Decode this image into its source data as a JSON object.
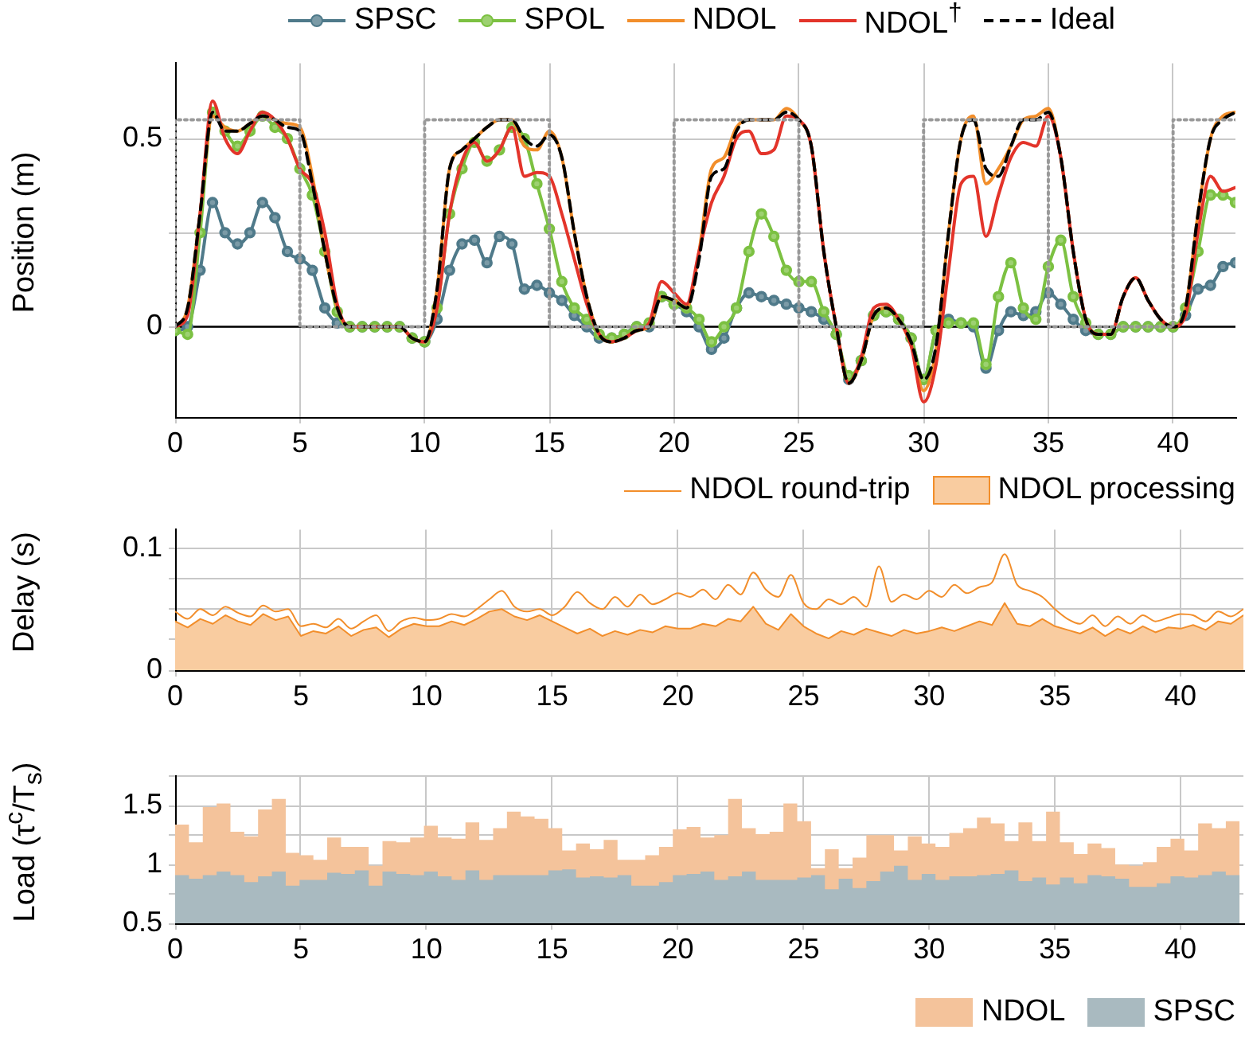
{
  "chart_data": [
    {
      "type": "line",
      "ylabel": "Position (m)",
      "xlim": [
        0,
        42.5
      ],
      "xticks": [
        0,
        5,
        10,
        15,
        20,
        25,
        30,
        35,
        40
      ],
      "ylim": [
        -0.24,
        0.7
      ],
      "yticks": [
        0,
        {
          "value": 0.25,
          "label": null
        },
        0.5
      ],
      "grid": true,
      "legend": "top",
      "x": [
        0,
        0.5,
        1,
        1.5,
        2,
        2.5,
        3,
        3.5,
        4,
        4.5,
        5,
        5.5,
        6,
        6.5,
        7,
        7.5,
        8,
        8.5,
        9,
        9.5,
        10,
        10.5,
        11,
        11.5,
        12,
        12.5,
        13,
        13.5,
        14,
        14.5,
        15,
        15.5,
        16,
        16.5,
        17,
        17.5,
        18,
        18.5,
        19,
        19.5,
        20,
        20.5,
        21,
        21.5,
        22,
        22.5,
        23,
        23.5,
        24,
        24.5,
        25,
        25.5,
        26,
        26.5,
        27,
        27.5,
        28,
        28.5,
        29,
        29.5,
        30,
        30.5,
        31,
        31.5,
        32,
        32.5,
        33,
        33.5,
        34,
        34.5,
        35,
        35.5,
        36,
        36.5,
        37,
        37.5,
        38,
        38.5,
        39,
        39.5,
        40,
        40.5,
        41,
        41.5,
        42,
        42.5
      ],
      "ref_lines": [
        {
          "axis": "y",
          "value": 0,
          "color": "#000000"
        }
      ],
      "series": [
        {
          "name": "SPSC",
          "color": "#4f7a8a",
          "marker": "circle",
          "values": [
            -0.01,
            0,
            0.15,
            0.33,
            0.25,
            0.22,
            0.25,
            0.33,
            0.29,
            0.2,
            0.18,
            0.15,
            0.05,
            0.01,
            0,
            0,
            0,
            0,
            0,
            -0.03,
            -0.04,
            0.02,
            0.15,
            0.22,
            0.23,
            0.17,
            0.24,
            0.22,
            0.1,
            0.11,
            0.09,
            0.07,
            0.03,
            0,
            -0.03,
            -0.03,
            -0.02,
            0,
            0,
            0.08,
            0.06,
            0.04,
            0,
            -0.06,
            -0.03,
            0.05,
            0.09,
            0.08,
            0.07,
            0.06,
            0.05,
            0.04,
            0.02,
            -0.02,
            -0.14,
            -0.09,
            0.03,
            0.04,
            0.02,
            -0.03,
            -0.14,
            -0.01,
            0.02,
            0.01,
            0,
            -0.11,
            -0.01,
            0.04,
            0.03,
            0.04,
            0.09,
            0.06,
            0.02,
            -0.01,
            -0.02,
            -0.02,
            0,
            0,
            0,
            0,
            0,
            0.03,
            0.1,
            0.11,
            0.16,
            0.17
          ]
        },
        {
          "name": "SPOL",
          "color": "#7cc142",
          "marker": "circle",
          "values": [
            -0.01,
            -0.02,
            0.25,
            0.57,
            0.52,
            0.48,
            0.52,
            0.56,
            0.53,
            0.5,
            0.42,
            0.35,
            0.2,
            0.04,
            0,
            0,
            0,
            0,
            0,
            -0.03,
            -0.04,
            0.05,
            0.3,
            0.42,
            0.49,
            0.44,
            0.47,
            0.53,
            0.5,
            0.38,
            0.26,
            0.12,
            0.05,
            0.02,
            -0.02,
            -0.03,
            -0.02,
            0,
            0.01,
            0.08,
            0.06,
            0.05,
            0.02,
            -0.04,
            0,
            0.05,
            0.2,
            0.3,
            0.24,
            0.15,
            0.12,
            0.12,
            0.04,
            -0.02,
            -0.13,
            -0.09,
            0.03,
            0.04,
            0.02,
            -0.03,
            -0.14,
            -0.01,
            0.01,
            0.01,
            0.01,
            -0.1,
            0.08,
            0.17,
            0.05,
            0.02,
            0.16,
            0.23,
            0.08,
            0.01,
            -0.02,
            -0.02,
            0,
            0,
            0,
            0,
            0,
            0.05,
            0.2,
            0.35,
            0.35,
            0.33
          ]
        },
        {
          "name": "NDOL",
          "color": "#f28e2b",
          "values": [
            0,
            0.05,
            0.3,
            0.56,
            0.53,
            0.52,
            0.54,
            0.56,
            0.55,
            0.54,
            0.53,
            0.4,
            0.2,
            0.05,
            0,
            0,
            0,
            0,
            0,
            -0.03,
            -0.04,
            0.1,
            0.42,
            0.47,
            0.5,
            0.53,
            0.55,
            0.55,
            0.48,
            0.47,
            0.52,
            0.45,
            0.25,
            0.08,
            -0.02,
            -0.04,
            -0.03,
            -0.01,
            0,
            0.08,
            0.07,
            0.05,
            0.2,
            0.42,
            0.45,
            0.53,
            0.55,
            0.55,
            0.55,
            0.58,
            0.55,
            0.48,
            0.2,
            0,
            -0.15,
            -0.09,
            0.03,
            0.05,
            0.02,
            -0.05,
            -0.17,
            -0.06,
            0.25,
            0.5,
            0.56,
            0.38,
            0.42,
            0.48,
            0.55,
            0.56,
            0.58,
            0.45,
            0.2,
            0.02,
            -0.02,
            -0.02,
            0.08,
            0.13,
            0.07,
            0.02,
            0,
            0.05,
            0.3,
            0.5,
            0.56,
            0.57
          ]
        },
        {
          "name": "NDOL$^{†}$",
          "color": "#e3342a",
          "values": [
            0,
            0.03,
            0.3,
            0.6,
            0.5,
            0.46,
            0.52,
            0.57,
            0.55,
            0.5,
            0.42,
            0.38,
            0.25,
            0.06,
            0,
            0,
            0,
            0,
            0,
            -0.03,
            -0.04,
            0.05,
            0.3,
            0.44,
            0.49,
            0.44,
            0.47,
            0.53,
            0.4,
            0.41,
            0.4,
            0.3,
            0.18,
            0.06,
            -0.02,
            -0.04,
            -0.03,
            -0.01,
            0.01,
            0.12,
            0.09,
            0.06,
            0.2,
            0.33,
            0.4,
            0.5,
            0.52,
            0.46,
            0.47,
            0.56,
            0.55,
            0.48,
            0.2,
            0,
            -0.15,
            -0.08,
            0.05,
            0.06,
            0.02,
            -0.05,
            -0.2,
            -0.1,
            0.15,
            0.38,
            0.4,
            0.24,
            0.35,
            0.45,
            0.49,
            0.48,
            0.56,
            0.45,
            0.2,
            0.02,
            -0.02,
            -0.02,
            0.08,
            0.13,
            0.07,
            0.02,
            0,
            0.03,
            0.25,
            0.4,
            0.36,
            0.37
          ]
        },
        {
          "name": "Ideal",
          "color": "#000000",
          "line_style": "dashed",
          "values": [
            0,
            0.05,
            0.3,
            0.57,
            0.52,
            0.52,
            0.54,
            0.56,
            0.55,
            0.53,
            0.52,
            0.38,
            0.2,
            0.05,
            0,
            0,
            0,
            0,
            0,
            -0.03,
            -0.04,
            0.1,
            0.42,
            0.47,
            0.5,
            0.53,
            0.55,
            0.55,
            0.5,
            0.48,
            0.51,
            0.45,
            0.25,
            0.08,
            -0.02,
            -0.04,
            -0.03,
            -0.01,
            0,
            0.08,
            0.07,
            0.05,
            0.18,
            0.4,
            0.42,
            0.52,
            0.55,
            0.55,
            0.55,
            0.57,
            0.55,
            0.48,
            0.2,
            0,
            -0.15,
            -0.09,
            0.03,
            0.05,
            0.02,
            -0.04,
            -0.14,
            -0.05,
            0.25,
            0.5,
            0.55,
            0.42,
            0.4,
            0.48,
            0.55,
            0.55,
            0.57,
            0.45,
            0.2,
            0.02,
            -0.02,
            -0.02,
            0.08,
            0.13,
            0.07,
            0.02,
            0,
            0.05,
            0.3,
            0.5,
            0.55,
            0.57
          ]
        },
        {
          "color": "#999999",
          "line_style": "dotted",
          "x": [
            0,
            0,
            5,
            5,
            10,
            10,
            15,
            15,
            20,
            20,
            25,
            25,
            30,
            30,
            35,
            35,
            40,
            40,
            42.5
          ],
          "values": [
            0,
            0.55,
            0.55,
            0,
            0,
            0.55,
            0.55,
            0,
            0,
            0.55,
            0.55,
            0,
            0,
            0.55,
            0.55,
            0,
            0,
            0.55,
            0.55
          ]
        }
      ]
    },
    {
      "type": "line",
      "ylabel": "Delay (s)",
      "xlim": [
        0,
        42.5
      ],
      "xticks": [
        0,
        5,
        10,
        15,
        20,
        25,
        30,
        35,
        40
      ],
      "ylim": [
        0,
        0.115
      ],
      "yticks": [
        0,
        {
          "value": 0.025,
          "label": null
        },
        {
          "value": 0.05,
          "label": null
        },
        {
          "value": 0.075,
          "label": null
        },
        0.1
      ],
      "grid": true,
      "legend": "top right",
      "x": [
        0,
        0.5,
        1,
        1.5,
        2,
        2.5,
        3,
        3.5,
        4,
        4.5,
        5,
        5.5,
        6,
        6.5,
        7,
        7.5,
        8,
        8.5,
        9,
        9.5,
        10,
        10.5,
        11,
        11.5,
        12,
        12.5,
        13,
        13.5,
        14,
        14.5,
        15,
        15.5,
        16,
        16.5,
        17,
        17.5,
        18,
        18.5,
        19,
        19.5,
        20,
        20.5,
        21,
        21.5,
        22,
        22.5,
        23,
        23.5,
        24,
        24.5,
        25,
        25.5,
        26,
        26.5,
        27,
        27.5,
        28,
        28.5,
        29,
        29.5,
        30,
        30.5,
        31,
        31.5,
        32,
        32.5,
        33,
        33.5,
        34,
        34.5,
        35,
        35.5,
        36,
        36.5,
        37,
        37.5,
        38,
        38.5,
        39,
        39.5,
        40,
        40.5,
        41,
        41.5,
        42,
        42.5
      ],
      "series": [
        {
          "name": "NDOL round-trip",
          "color": "#f28e2b",
          "values": [
            0.048,
            0.042,
            0.05,
            0.045,
            0.052,
            0.047,
            0.044,
            0.053,
            0.048,
            0.05,
            0.036,
            0.038,
            0.035,
            0.042,
            0.034,
            0.04,
            0.045,
            0.032,
            0.04,
            0.043,
            0.041,
            0.042,
            0.046,
            0.044,
            0.05,
            0.058,
            0.065,
            0.052,
            0.048,
            0.05,
            0.045,
            0.052,
            0.064,
            0.055,
            0.05,
            0.06,
            0.052,
            0.062,
            0.054,
            0.058,
            0.063,
            0.06,
            0.066,
            0.058,
            0.07,
            0.062,
            0.08,
            0.066,
            0.06,
            0.078,
            0.055,
            0.05,
            0.058,
            0.054,
            0.06,
            0.052,
            0.085,
            0.056,
            0.062,
            0.058,
            0.065,
            0.06,
            0.07,
            0.063,
            0.068,
            0.072,
            0.095,
            0.07,
            0.065,
            0.06,
            0.05,
            0.042,
            0.038,
            0.045,
            0.036,
            0.044,
            0.038,
            0.045,
            0.04,
            0.043,
            0.046,
            0.045,
            0.04,
            0.048,
            0.044,
            0.05
          ]
        },
        {
          "name": "NDOL processing",
          "type": "area",
          "color": "#f28e2b",
          "values": [
            0.04,
            0.035,
            0.042,
            0.038,
            0.045,
            0.04,
            0.037,
            0.046,
            0.041,
            0.044,
            0.028,
            0.032,
            0.03,
            0.036,
            0.028,
            0.033,
            0.035,
            0.027,
            0.034,
            0.038,
            0.036,
            0.036,
            0.04,
            0.037,
            0.042,
            0.048,
            0.05,
            0.044,
            0.041,
            0.045,
            0.04,
            0.035,
            0.03,
            0.034,
            0.028,
            0.032,
            0.029,
            0.033,
            0.031,
            0.036,
            0.034,
            0.034,
            0.038,
            0.036,
            0.042,
            0.04,
            0.052,
            0.038,
            0.033,
            0.046,
            0.036,
            0.03,
            0.026,
            0.032,
            0.029,
            0.034,
            0.031,
            0.028,
            0.033,
            0.03,
            0.032,
            0.035,
            0.032,
            0.036,
            0.04,
            0.037,
            0.055,
            0.038,
            0.036,
            0.042,
            0.036,
            0.033,
            0.03,
            0.035,
            0.028,
            0.034,
            0.03,
            0.036,
            0.031,
            0.035,
            0.034,
            0.037,
            0.033,
            0.04,
            0.038,
            0.045
          ]
        }
      ]
    },
    {
      "type": "histogram",
      "ylabel": "Load (τ$^{c}$/T$_{s}$)",
      "xlim": [
        0,
        42.5
      ],
      "xticks": [
        0,
        5,
        10,
        15,
        20,
        25,
        30,
        35,
        40
      ],
      "ylim": [
        0.5,
        1.75
      ],
      "yticks": [
        0.5,
        {
          "value": 0.75,
          "label": null
        },
        1,
        {
          "value": 1.25,
          "label": null
        },
        1.5,
        {
          "value": 1.75,
          "label": null
        }
      ],
      "grid": true,
      "legend": "bottom right",
      "bins": [
        0,
        0.55,
        1.1,
        1.65,
        2.2,
        2.75,
        3.3,
        3.85,
        4.4,
        4.95,
        5.5,
        6.05,
        6.6,
        7.15,
        7.7,
        8.25,
        8.8,
        9.35,
        9.9,
        10.45,
        11,
        11.55,
        12.1,
        12.65,
        13.2,
        13.75,
        14.3,
        14.85,
        15.4,
        15.95,
        16.5,
        17.05,
        17.6,
        18.15,
        18.7,
        19.25,
        19.8,
        20.35,
        20.9,
        21.45,
        22,
        22.55,
        23.1,
        23.65,
        24.2,
        24.75,
        25.3,
        25.85,
        26.4,
        26.95,
        27.5,
        28.05,
        28.6,
        29.15,
        29.7,
        30.25,
        30.8,
        31.35,
        31.9,
        32.45,
        33,
        33.55,
        34.1,
        34.65,
        35.2,
        35.75,
        36.3,
        36.85,
        37.4,
        37.95,
        38.5,
        39.05,
        39.6,
        40.15,
        40.7,
        41.25,
        41.8,
        42.35
      ],
      "series": [
        {
          "name": "NDOL",
          "color": "#f4c39b",
          "values": [
            1.34,
            1.19,
            1.49,
            1.52,
            1.28,
            1.24,
            1.47,
            1.56,
            1.1,
            1.08,
            1.04,
            1.23,
            1.15,
            1.15,
            0.99,
            1.2,
            1.19,
            1.23,
            1.33,
            1.23,
            1.22,
            1.36,
            1.21,
            1.31,
            1.45,
            1.41,
            1.39,
            1.31,
            1.12,
            1.18,
            1.13,
            1.21,
            1.04,
            1.04,
            1.08,
            1.15,
            1.3,
            1.32,
            1.23,
            1.25,
            1.56,
            1.31,
            1.26,
            1.28,
            1.52,
            1.37,
            0.97,
            1.13,
            0.97,
            1.06,
            1.25,
            1.25,
            1.12,
            1.24,
            1.18,
            1.15,
            1.27,
            1.31,
            1.4,
            1.35,
            1.2,
            1.36,
            1.2,
            1.45,
            1.19,
            1.09,
            1.18,
            1.14,
            1,
            0.99,
            1.02,
            1.15,
            1.22,
            1.12,
            1.35,
            1.31,
            1.37
          ]
        },
        {
          "name": "SPSC",
          "color": "#a9bac0",
          "values": [
            0.91,
            0.88,
            0.91,
            0.94,
            0.91,
            0.85,
            0.9,
            0.94,
            0.82,
            0.87,
            0.87,
            0.93,
            0.92,
            0.95,
            0.82,
            0.94,
            0.92,
            0.91,
            0.94,
            0.9,
            0.87,
            0.95,
            0.87,
            0.91,
            0.91,
            0.91,
            0.91,
            0.95,
            0.96,
            0.89,
            0.9,
            0.89,
            0.91,
            0.82,
            0.82,
            0.85,
            0.91,
            0.92,
            0.94,
            0.87,
            0.9,
            0.94,
            0.87,
            0.87,
            0.87,
            0.89,
            0.91,
            0.79,
            0.88,
            0.8,
            0.86,
            0.94,
            0.99,
            0.87,
            0.92,
            0.87,
            0.9,
            0.9,
            0.91,
            0.92,
            0.95,
            0.86,
            0.89,
            0.83,
            0.89,
            0.84,
            0.91,
            0.9,
            0.88,
            0.81,
            0.81,
            0.84,
            0.9,
            0.89,
            0.91,
            0.94,
            0.91
          ]
        }
      ]
    }
  ]
}
